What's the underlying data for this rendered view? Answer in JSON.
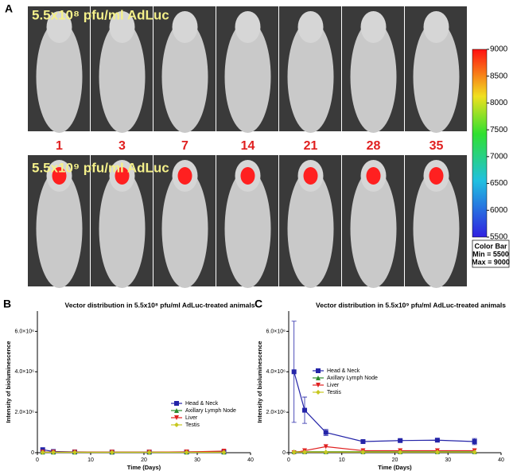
{
  "panel_a": {
    "letter": "A",
    "label_low": "5.5x10⁸ pfu/ml AdLuc",
    "label_high": "5.5x10⁹ pfu/ml AdLuc",
    "days": [
      "1",
      "3",
      "7",
      "14",
      "21",
      "28",
      "35"
    ],
    "colorbar": {
      "lim": [
        5500,
        9000
      ],
      "ticks": [
        5500,
        6000,
        6500,
        7000,
        7500,
        8000,
        8500,
        9000
      ],
      "title": "Color Bar",
      "min_label": "Min = 5500",
      "max_label": "Max = 9000"
    }
  },
  "chart_data": [
    {
      "type": "line",
      "letter": "B",
      "title": "Vector distribution in 5.5x10⁸ pfu/ml AdLuc-treated animals",
      "x_label": "Time (Days)",
      "y_label": "Intensity of bioluminescence",
      "x": [
        1,
        3,
        7,
        14,
        21,
        28,
        35
      ],
      "xlim": [
        0,
        40
      ],
      "xticks": [
        0,
        10,
        20,
        30,
        40
      ],
      "ylim": [
        0,
        7000000
      ],
      "yticks": [
        0,
        {
          "value": 2000000,
          "label": "2.0×10⁶"
        },
        {
          "value": 4000000,
          "label": "4.0×10⁶"
        },
        {
          "value": 6000000,
          "label": "6.0×10⁶"
        }
      ],
      "legend": "lower right",
      "series": [
        {
          "name": "Head & Neck",
          "color": "#2424a8",
          "marker": "square",
          "values": [
            150000,
            60000,
            40000,
            30000,
            30000,
            40000,
            40000
          ]
        },
        {
          "name": "Axillary Lymph Node",
          "color": "#2e8b2e",
          "marker": "triangle",
          "values": [
            30000,
            30000,
            30000,
            30000,
            30000,
            30000,
            30000
          ]
        },
        {
          "name": "Liver",
          "color": "#e02020",
          "marker": "triangle-down",
          "values": [
            30000,
            30000,
            30000,
            30000,
            30000,
            40000,
            80000
          ]
        },
        {
          "name": "Testis",
          "color": "#c8c820",
          "marker": "diamond",
          "values": [
            20000,
            20000,
            20000,
            20000,
            20000,
            20000,
            20000
          ]
        }
      ]
    },
    {
      "type": "line",
      "letter": "C",
      "title": "Vector distribution in 5.5x10⁹ pfu/ml AdLuc-treated animals",
      "x_label": "Time (Days)",
      "y_label": "Intensity of bioluminescence",
      "x": [
        1,
        3,
        7,
        14,
        21,
        28,
        35
      ],
      "xlim": [
        0,
        40
      ],
      "xticks": [
        0,
        10,
        20,
        30,
        40
      ],
      "ylim": [
        0,
        7000000
      ],
      "yticks": [
        0,
        {
          "value": 2000000,
          "label": "2.0×10⁶"
        },
        {
          "value": 4000000,
          "label": "4.0×10⁶"
        },
        {
          "value": 6000000,
          "label": "6.0×10⁶"
        }
      ],
      "legend": "upper left",
      "series": [
        {
          "name": "Head & Neck",
          "color": "#2424a8",
          "marker": "square",
          "values": [
            4000000,
            2100000,
            1000000,
            550000,
            600000,
            620000,
            550000
          ],
          "errors": [
            2500000,
            650000,
            150000,
            50000,
            50000,
            50000,
            150000
          ]
        },
        {
          "name": "Axillary Lymph Node",
          "color": "#2e8b2e",
          "marker": "triangle",
          "values": [
            50000,
            50000,
            50000,
            50000,
            50000,
            50000,
            50000
          ]
        },
        {
          "name": "Liver",
          "color": "#e02020",
          "marker": "triangle-down",
          "values": [
            0,
            100000,
            300000,
            100000,
            100000,
            100000,
            100000
          ]
        },
        {
          "name": "Testis",
          "color": "#c8c820",
          "marker": "diamond",
          "values": [
            30000,
            30000,
            30000,
            30000,
            30000,
            30000,
            30000
          ]
        }
      ]
    }
  ]
}
